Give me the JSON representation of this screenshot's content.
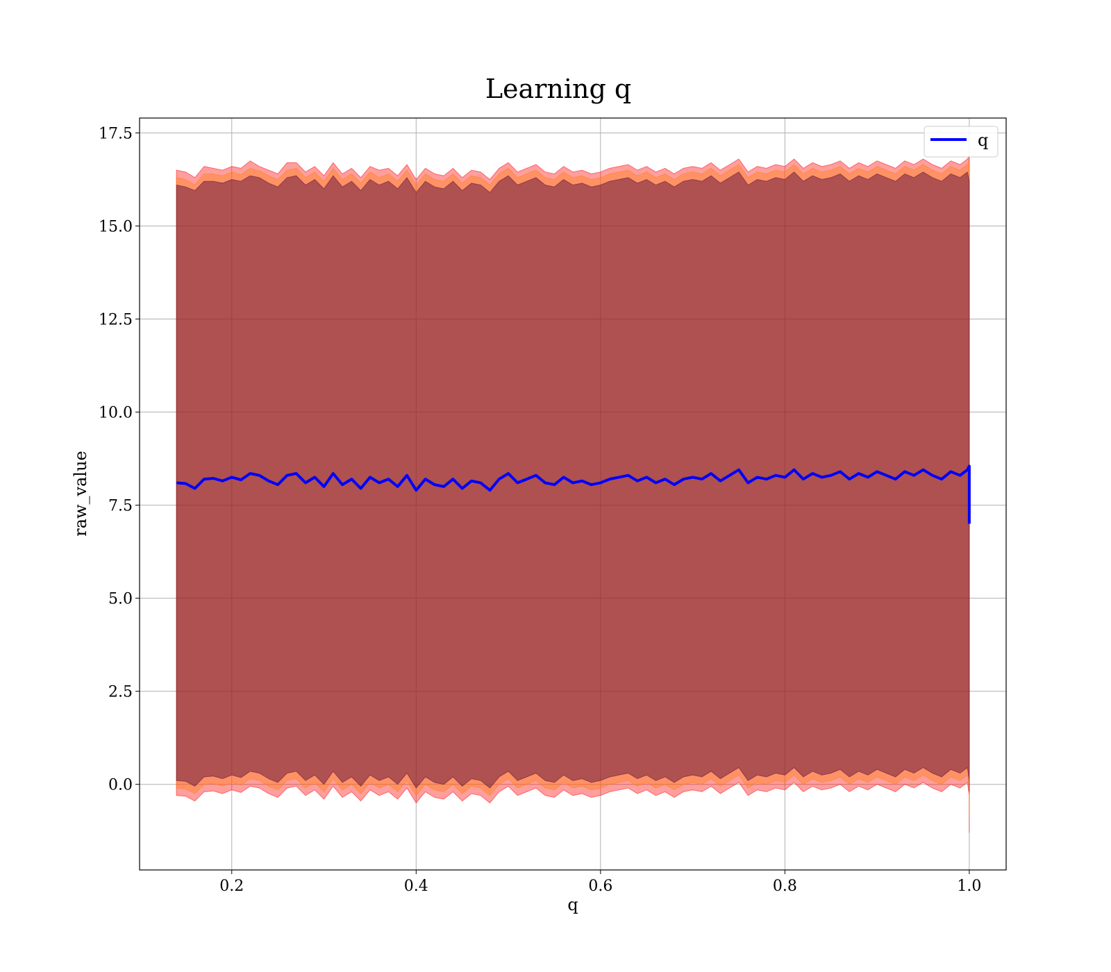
{
  "chart_data": {
    "type": "line",
    "title": "Learning q",
    "xlabel": "q",
    "ylabel": "raw_value",
    "xlim": [
      0.1,
      1.04
    ],
    "ylim": [
      -2.3,
      17.9
    ],
    "xticks": [
      0.2,
      0.4,
      0.6,
      0.8,
      1.0
    ],
    "xtick_labels": [
      "0.2",
      "0.4",
      "0.6",
      "0.8",
      "1.0"
    ],
    "yticks": [
      0.0,
      2.5,
      5.0,
      7.5,
      10.0,
      12.5,
      15.0,
      17.5
    ],
    "ytick_labels": [
      "0.0",
      "2.5",
      "5.0",
      "7.5",
      "10.0",
      "12.5",
      "15.0",
      "17.5"
    ],
    "grid": true,
    "legend": {
      "position": "top-right",
      "entries": [
        "q"
      ]
    },
    "series": [
      {
        "name": "q",
        "color": "#0000ff",
        "x": [
          0.14,
          0.15,
          0.16,
          0.17,
          0.18,
          0.19,
          0.2,
          0.21,
          0.22,
          0.23,
          0.24,
          0.25,
          0.26,
          0.27,
          0.28,
          0.29,
          0.3,
          0.31,
          0.32,
          0.33,
          0.34,
          0.35,
          0.36,
          0.37,
          0.38,
          0.39,
          0.4,
          0.41,
          0.42,
          0.43,
          0.44,
          0.45,
          0.46,
          0.47,
          0.48,
          0.49,
          0.5,
          0.51,
          0.52,
          0.53,
          0.54,
          0.55,
          0.56,
          0.57,
          0.58,
          0.59,
          0.6,
          0.61,
          0.62,
          0.63,
          0.64,
          0.65,
          0.66,
          0.67,
          0.68,
          0.69,
          0.7,
          0.71,
          0.72,
          0.73,
          0.74,
          0.75,
          0.76,
          0.77,
          0.78,
          0.79,
          0.8,
          0.81,
          0.82,
          0.83,
          0.84,
          0.85,
          0.86,
          0.87,
          0.88,
          0.89,
          0.9,
          0.91,
          0.92,
          0.93,
          0.94,
          0.95,
          0.96,
          0.97,
          0.98,
          0.99,
          0.998,
          1.0,
          1.0
        ],
        "values": [
          8.1,
          8.08,
          7.95,
          8.2,
          8.22,
          8.15,
          8.25,
          8.18,
          8.35,
          8.3,
          8.15,
          8.05,
          8.3,
          8.35,
          8.1,
          8.25,
          8.0,
          8.35,
          8.05,
          8.2,
          7.95,
          8.25,
          8.1,
          8.2,
          8.0,
          8.3,
          7.9,
          8.2,
          8.05,
          8.0,
          8.2,
          7.95,
          8.15,
          8.1,
          7.9,
          8.2,
          8.35,
          8.1,
          8.2,
          8.3,
          8.1,
          8.05,
          8.25,
          8.1,
          8.15,
          8.05,
          8.1,
          8.2,
          8.25,
          8.3,
          8.15,
          8.25,
          8.1,
          8.2,
          8.05,
          8.2,
          8.25,
          8.2,
          8.35,
          8.15,
          8.3,
          8.45,
          8.1,
          8.25,
          8.2,
          8.3,
          8.25,
          8.45,
          8.2,
          8.35,
          8.25,
          8.3,
          8.4,
          8.2,
          8.35,
          8.25,
          8.4,
          8.3,
          8.2,
          8.4,
          8.3,
          8.45,
          8.3,
          8.2,
          8.4,
          8.3,
          8.45,
          8.55,
          7.0
        ]
      }
    ],
    "bands": [
      {
        "color": "#ff0000",
        "opacity": 0.38,
        "upper": [
          16.5,
          16.45,
          16.3,
          16.6,
          16.55,
          16.5,
          16.6,
          16.55,
          16.75,
          16.6,
          16.5,
          16.4,
          16.7,
          16.7,
          16.45,
          16.6,
          16.35,
          16.7,
          16.4,
          16.55,
          16.3,
          16.6,
          16.5,
          16.55,
          16.35,
          16.65,
          16.25,
          16.55,
          16.4,
          16.35,
          16.55,
          16.3,
          16.5,
          16.45,
          16.25,
          16.55,
          16.7,
          16.45,
          16.55,
          16.65,
          16.45,
          16.4,
          16.6,
          16.45,
          16.5,
          16.4,
          16.45,
          16.55,
          16.6,
          16.65,
          16.5,
          16.6,
          16.45,
          16.55,
          16.4,
          16.55,
          16.6,
          16.55,
          16.7,
          16.5,
          16.65,
          16.8,
          16.45,
          16.6,
          16.55,
          16.65,
          16.6,
          16.8,
          16.55,
          16.7,
          16.6,
          16.65,
          16.75,
          16.55,
          16.7,
          16.6,
          16.75,
          16.65,
          16.55,
          16.75,
          16.65,
          16.8,
          16.65,
          16.55,
          16.75,
          16.65,
          16.8,
          16.9,
          16.9
        ],
        "lower": [
          -0.3,
          -0.32,
          -0.45,
          -0.2,
          -0.18,
          -0.25,
          -0.15,
          -0.22,
          -0.05,
          -0.1,
          -0.25,
          -0.35,
          -0.1,
          -0.05,
          -0.3,
          -0.15,
          -0.4,
          -0.05,
          -0.35,
          -0.2,
          -0.45,
          -0.15,
          -0.3,
          -0.2,
          -0.4,
          -0.1,
          -0.5,
          -0.2,
          -0.35,
          -0.4,
          -0.2,
          -0.45,
          -0.25,
          -0.3,
          -0.5,
          -0.2,
          -0.05,
          -0.3,
          -0.2,
          -0.1,
          -0.3,
          -0.35,
          -0.15,
          -0.3,
          -0.25,
          -0.35,
          -0.3,
          -0.2,
          -0.15,
          -0.1,
          -0.25,
          -0.15,
          -0.3,
          -0.2,
          -0.35,
          -0.2,
          -0.15,
          -0.2,
          -0.05,
          -0.25,
          -0.1,
          0.05,
          -0.3,
          -0.15,
          -0.2,
          -0.1,
          -0.15,
          0.05,
          -0.2,
          -0.05,
          -0.15,
          -0.1,
          0.0,
          -0.2,
          -0.05,
          -0.15,
          0.0,
          -0.1,
          -0.2,
          0.0,
          -0.1,
          0.05,
          -0.1,
          -0.2,
          0.0,
          -0.1,
          0.05,
          -0.3,
          -1.3
        ]
      },
      {
        "color": "#ff7f0e",
        "opacity": 0.4,
        "upper": [
          16.3,
          16.25,
          16.1,
          16.4,
          16.4,
          16.35,
          16.45,
          16.38,
          16.55,
          16.48,
          16.35,
          16.25,
          16.5,
          16.55,
          16.3,
          16.45,
          16.2,
          16.55,
          16.25,
          16.4,
          16.15,
          16.45,
          16.3,
          16.4,
          16.2,
          16.5,
          16.1,
          16.4,
          16.25,
          16.2,
          16.4,
          16.15,
          16.35,
          16.3,
          16.1,
          16.4,
          16.55,
          16.3,
          16.4,
          16.5,
          16.3,
          16.25,
          16.45,
          16.3,
          16.35,
          16.25,
          16.3,
          16.4,
          16.45,
          16.5,
          16.35,
          16.45,
          16.3,
          16.4,
          16.25,
          16.4,
          16.45,
          16.4,
          16.55,
          16.35,
          16.5,
          16.65,
          16.3,
          16.45,
          16.4,
          16.5,
          16.45,
          16.65,
          16.4,
          16.55,
          16.45,
          16.5,
          16.6,
          16.4,
          16.55,
          16.45,
          16.6,
          16.5,
          16.4,
          16.6,
          16.5,
          16.65,
          16.5,
          16.4,
          16.6,
          16.5,
          16.65,
          16.75,
          16.75
        ],
        "lower": [
          -0.1,
          -0.12,
          -0.25,
          0.0,
          0.02,
          -0.05,
          0.05,
          -0.02,
          0.15,
          0.1,
          -0.05,
          -0.15,
          0.1,
          0.15,
          -0.1,
          0.05,
          -0.2,
          0.15,
          -0.15,
          0.0,
          -0.25,
          0.05,
          -0.1,
          0.0,
          -0.2,
          0.1,
          -0.3,
          0.0,
          -0.15,
          -0.2,
          0.0,
          -0.25,
          -0.05,
          -0.1,
          -0.3,
          0.0,
          0.15,
          -0.1,
          0.0,
          0.1,
          -0.1,
          -0.15,
          0.05,
          -0.1,
          -0.05,
          -0.15,
          -0.1,
          0.0,
          0.05,
          0.1,
          -0.05,
          0.05,
          -0.1,
          0.0,
          -0.15,
          0.0,
          0.05,
          0.0,
          0.15,
          -0.05,
          0.1,
          0.25,
          -0.1,
          0.05,
          0.0,
          0.1,
          0.05,
          0.25,
          0.0,
          0.15,
          0.05,
          0.1,
          0.2,
          0.0,
          0.15,
          0.05,
          0.2,
          0.1,
          0.0,
          0.2,
          0.1,
          0.25,
          0.1,
          0.0,
          0.2,
          0.1,
          0.25,
          -0.1,
          -0.9
        ]
      },
      {
        "color": "#550a3a",
        "opacity": 0.48,
        "upper": [
          16.1,
          16.05,
          15.95,
          16.2,
          16.2,
          16.15,
          16.25,
          16.2,
          16.35,
          16.3,
          16.15,
          16.05,
          16.3,
          16.35,
          16.1,
          16.25,
          16.0,
          16.35,
          16.05,
          16.2,
          15.95,
          16.25,
          16.1,
          16.2,
          16.0,
          16.3,
          15.9,
          16.2,
          16.05,
          16.0,
          16.2,
          15.95,
          16.15,
          16.1,
          15.9,
          16.2,
          16.35,
          16.1,
          16.2,
          16.3,
          16.1,
          16.05,
          16.25,
          16.1,
          16.15,
          16.05,
          16.1,
          16.2,
          16.25,
          16.3,
          16.15,
          16.25,
          16.1,
          16.2,
          16.05,
          16.2,
          16.25,
          16.2,
          16.35,
          16.15,
          16.3,
          16.45,
          16.1,
          16.25,
          16.2,
          16.3,
          16.25,
          16.45,
          16.2,
          16.35,
          16.25,
          16.3,
          16.4,
          16.2,
          16.35,
          16.25,
          16.4,
          16.3,
          16.2,
          16.4,
          16.3,
          16.45,
          16.3,
          16.2,
          16.4,
          16.3,
          16.45,
          16.2,
          16.1
        ],
        "lower": [
          0.1,
          0.08,
          -0.05,
          0.2,
          0.22,
          0.15,
          0.25,
          0.18,
          0.35,
          0.3,
          0.15,
          0.05,
          0.3,
          0.35,
          0.1,
          0.25,
          0.0,
          0.35,
          0.05,
          0.2,
          -0.05,
          0.25,
          0.1,
          0.2,
          0.0,
          0.3,
          -0.1,
          0.2,
          0.05,
          0.0,
          0.2,
          -0.05,
          0.15,
          0.1,
          -0.1,
          0.2,
          0.35,
          0.1,
          0.2,
          0.3,
          0.1,
          0.05,
          0.25,
          0.1,
          0.15,
          0.05,
          0.1,
          0.2,
          0.25,
          0.3,
          0.15,
          0.25,
          0.1,
          0.2,
          0.05,
          0.2,
          0.25,
          0.2,
          0.35,
          0.15,
          0.3,
          0.45,
          0.1,
          0.25,
          0.2,
          0.3,
          0.25,
          0.45,
          0.2,
          0.35,
          0.25,
          0.3,
          0.4,
          0.2,
          0.35,
          0.25,
          0.4,
          0.3,
          0.2,
          0.4,
          0.3,
          0.45,
          0.3,
          0.2,
          0.4,
          0.3,
          0.45,
          0.1,
          -0.2
        ]
      }
    ]
  }
}
